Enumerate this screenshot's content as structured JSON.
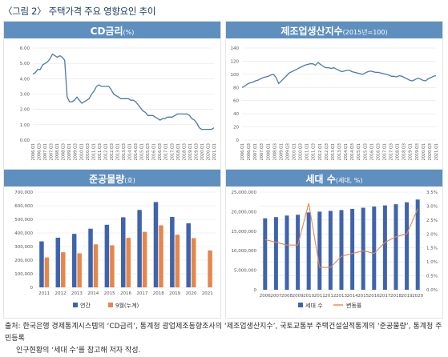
{
  "figure_title": "〈그림 2〉 주택가격 주요 영향요인 추이",
  "source_line1": "출처: 한국은행 경제통계시스템의 ‘CD금리’, 통계청 광업제조동향조사의 ‘제조업생산지수’, 국토교통부 주택건설실적통계의 ‘준공물량’, 통계청 주민등록",
  "source_line2": "인구현황의 ‘세대 수’를 참고해 저자 작성.",
  "colors": {
    "header": "#5f8fbe",
    "line": "#4a78ad",
    "bar": "#3f64ad",
    "bar2": "#e5864b",
    "grid": "#e4e4e4",
    "text": "#555555"
  },
  "chart_data": [
    {
      "type": "line",
      "title": "CD금리",
      "unit": "(%)",
      "ylim": [
        0,
        6
      ],
      "yticks": [
        "0.00",
        "1.00",
        "2.00",
        "3.00",
        "4.00",
        "5.00",
        "6.00"
      ],
      "xticks": [
        "2006.Q1",
        "2006.Q3",
        "2007.Q1",
        "2007.Q3",
        "2008.Q1",
        "2008.Q3",
        "2009.Q1",
        "2009.Q3",
        "2010.Q1",
        "2010.Q3",
        "2011.Q1",
        "2011.Q3",
        "2012.Q1",
        "2012.Q3",
        "2013.Q1",
        "2013.Q3",
        "2014.Q1",
        "2014.Q3",
        "2015.Q1",
        "2015.Q3",
        "2016.Q1",
        "2016.Q3",
        "2017.Q1",
        "2017.Q3",
        "2018.Q1",
        "2018.Q3",
        "2019.Q1",
        "2019.Q3",
        "2020.Q1",
        "2020.Q3",
        "2021.Q1"
      ],
      "values": [
        4.3,
        4.4,
        4.6,
        4.6,
        4.9,
        5.0,
        5.1,
        5.3,
        5.6,
        5.5,
        5.4,
        5.5,
        5.4,
        5.2,
        2.8,
        2.5,
        2.5,
        2.6,
        2.8,
        2.6,
        2.4,
        2.5,
        2.6,
        2.7,
        3.0,
        3.2,
        3.5,
        3.6,
        3.5,
        3.5,
        3.5,
        3.5,
        3.3,
        3.0,
        2.9,
        2.8,
        2.7,
        2.7,
        2.7,
        2.7,
        2.6,
        2.6,
        2.5,
        2.3,
        2.1,
        1.9,
        1.8,
        1.6,
        1.6,
        1.6,
        1.5,
        1.4,
        1.3,
        1.4,
        1.4,
        1.5,
        1.5,
        1.5,
        1.6,
        1.7,
        1.7,
        1.7,
        1.7,
        1.7,
        1.6,
        1.4,
        1.3,
        1.1,
        0.8,
        0.7,
        0.7,
        0.7,
        0.7,
        0.7,
        0.8
      ]
    },
    {
      "type": "line",
      "title": "제조업생산지수",
      "unit": "(2015년=100)",
      "ylim": [
        0,
        140
      ],
      "yticks": [
        "0",
        "20",
        "40",
        "60",
        "80",
        "100",
        "120",
        "140"
      ],
      "xticks": [
        "2006.Q1",
        "2006.Q3",
        "2007.Q1",
        "2007.Q3",
        "2008.Q1",
        "2008.Q3",
        "2009.Q1",
        "2009.Q3",
        "2010.Q1",
        "2010.Q3",
        "2011.Q1",
        "2011.Q3",
        "2012.Q1",
        "2012.Q3",
        "2013.Q1",
        "2013.Q3",
        "2014.Q1",
        "2014.Q3",
        "2015.Q1",
        "2015.Q3",
        "2016.Q1",
        "2016.Q3",
        "2017.Q1",
        "2017.Q3",
        "2018.Q1",
        "2018.Q3",
        "2019.Q1",
        "2019.Q3",
        "2020.Q1",
        "2020.Q3",
        "2021.Q1"
      ],
      "values": [
        80,
        82,
        85,
        87,
        88,
        90,
        91,
        93,
        95,
        96,
        97,
        99,
        100,
        95,
        86,
        90,
        94,
        98,
        102,
        104,
        106,
        108,
        110,
        112,
        114,
        115,
        116,
        116,
        114,
        118,
        115,
        112,
        110,
        110,
        109,
        110,
        108,
        106,
        104,
        105,
        106,
        106,
        104,
        103,
        102,
        101,
        100,
        102,
        104,
        105,
        104,
        103,
        103,
        102,
        101,
        100,
        99,
        97,
        97,
        96,
        98,
        97,
        95,
        93,
        91,
        90,
        92,
        94,
        93,
        91,
        90,
        93,
        95,
        97,
        98
      ]
    },
    {
      "type": "bar",
      "title": "준공물량",
      "unit": "(호)",
      "ylim": [
        0,
        700000
      ],
      "yticks": [
        "0",
        "100,000",
        "200,000",
        "300,000",
        "400,000",
        "500,000",
        "600,000",
        "700,000"
      ],
      "categories": [
        "2011",
        "2012",
        "2013",
        "2014",
        "2015",
        "2016",
        "2017",
        "2018",
        "2019",
        "2020",
        "2021"
      ],
      "series": [
        {
          "name": "연간",
          "values": [
            338000,
            365000,
            393000,
            431000,
            460000,
            515000,
            569000,
            627000,
            518000,
            471000,
            null
          ]
        },
        {
          "name": "9월(누계)",
          "values": [
            220000,
            258000,
            250000,
            316000,
            309000,
            364000,
            408000,
            456000,
            387000,
            362000,
            271000
          ]
        }
      ]
    },
    {
      "type": "bar+line",
      "title": "세대 수",
      "unit": "(세대, %)",
      "ylim": [
        0,
        25000000
      ],
      "y2lim": [
        0,
        3.5
      ],
      "yticks": [
        "0",
        "5,000,000",
        "10,000,000",
        "15,000,000",
        "20,000,000",
        "25,000,000"
      ],
      "y2ticks": [
        "0.0%",
        "0.5%",
        "1.0%",
        "1.5%",
        "2.0%",
        "2.5%",
        "3.0%",
        "3.5%"
      ],
      "categories": [
        "2006",
        "2007",
        "2008",
        "2009",
        "2010",
        "2011",
        "2012",
        "2013",
        "2014",
        "2015",
        "2016",
        "2017",
        "2018",
        "2019",
        "2020"
      ],
      "series": [
        {
          "name": "세대 수",
          "values": [
            18300000,
            18600000,
            19000000,
            19200000,
            19800000,
            20000000,
            20200000,
            20400000,
            20700000,
            21000000,
            21300000,
            21600000,
            21900000,
            22400000,
            23100000
          ]
        },
        {
          "name": "변동률",
          "axis": "y2",
          "values": [
            1.8,
            1.7,
            1.6,
            1.6,
            3.1,
            0.8,
            0.8,
            1.2,
            1.3,
            1.4,
            1.3,
            1.7,
            1.9,
            2.0,
            2.9
          ]
        }
      ]
    }
  ]
}
